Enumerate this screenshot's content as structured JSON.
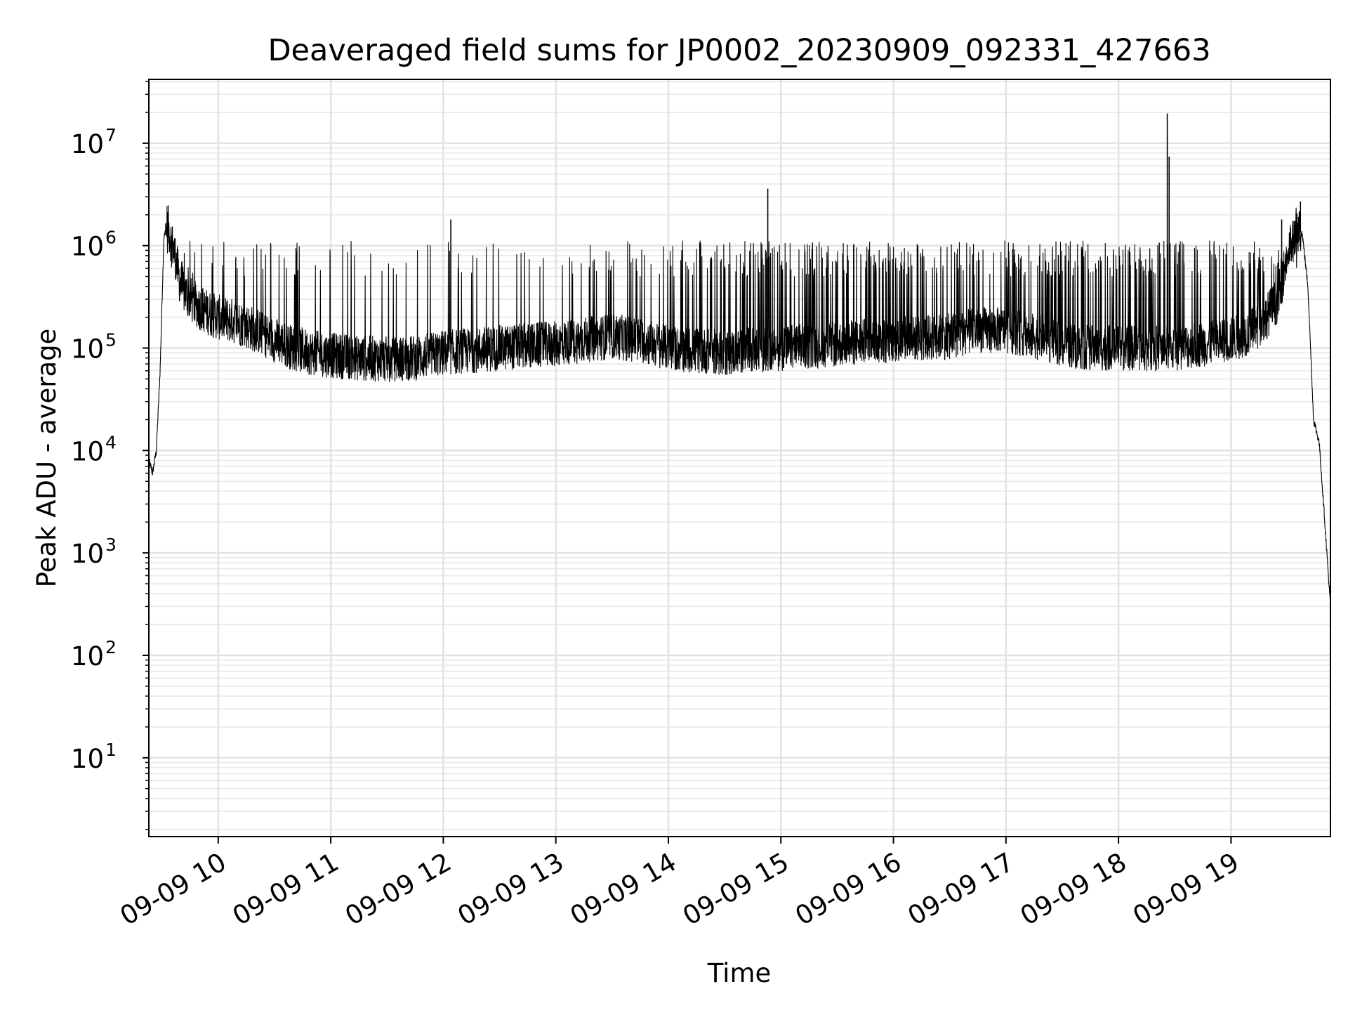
{
  "chart_data": {
    "type": "line",
    "title": "Deaveraged field sums for JP0002_20230909_092331_427663",
    "xlabel": "Time",
    "ylabel": "Peak ADU - average",
    "yscale": "log",
    "ylim": [
      1.7,
      42000000
    ],
    "xlim": [
      "2023-09-09 09:23",
      "2023-09-09 19:53"
    ],
    "grid": true,
    "x_tick_labels": [
      "09-09 10",
      "09-09 11",
      "09-09 12",
      "09-09 13",
      "09-09 14",
      "09-09 15",
      "09-09 16",
      "09-09 17",
      "09-09 18",
      "09-09 19"
    ],
    "x_tick_values": [
      "2023-09-09 10:00",
      "2023-09-09 11:00",
      "2023-09-09 12:00",
      "2023-09-09 13:00",
      "2023-09-09 14:00",
      "2023-09-09 15:00",
      "2023-09-09 16:00",
      "2023-09-09 17:00",
      "2023-09-09 18:00",
      "2023-09-09 19:00"
    ],
    "y_tick_labels": [
      {
        "base": "10",
        "exp": "1"
      },
      {
        "base": "10",
        "exp": "2"
      },
      {
        "base": "10",
        "exp": "3"
      },
      {
        "base": "10",
        "exp": "4"
      },
      {
        "base": "10",
        "exp": "5"
      },
      {
        "base": "10",
        "exp": "6"
      },
      {
        "base": "10",
        "exp": "7"
      }
    ],
    "y_tick_values": [
      10,
      100,
      1000,
      10000,
      100000,
      1000000,
      10000000
    ],
    "series": [
      {
        "color": "#000000",
        "x": [
          "2023-09-09 09:23",
          "2023-09-09 09:25",
          "2023-09-09 09:27",
          "2023-09-09 09:29",
          "2023-09-09 09:31",
          "2023-09-09 09:33",
          "2023-09-09 09:35",
          "2023-09-09 09:37",
          "2023-09-09 09:40",
          "2023-09-09 09:45",
          "2023-09-09 09:50",
          "2023-09-09 09:55",
          "2023-09-09 10:00",
          "2023-09-09 10:10",
          "2023-09-09 10:20",
          "2023-09-09 10:30",
          "2023-09-09 10:40",
          "2023-09-09 10:50",
          "2023-09-09 11:00",
          "2023-09-09 11:15",
          "2023-09-09 11:30",
          "2023-09-09 11:45",
          "2023-09-09 12:00",
          "2023-09-09 12:15",
          "2023-09-09 12:30",
          "2023-09-09 12:45",
          "2023-09-09 13:00",
          "2023-09-09 13:15",
          "2023-09-09 13:30",
          "2023-09-09 13:45",
          "2023-09-09 14:00",
          "2023-09-09 14:15",
          "2023-09-09 14:30",
          "2023-09-09 14:45",
          "2023-09-09 15:00",
          "2023-09-09 15:15",
          "2023-09-09 15:30",
          "2023-09-09 15:45",
          "2023-09-09 16:00",
          "2023-09-09 16:15",
          "2023-09-09 16:30",
          "2023-09-09 16:45",
          "2023-09-09 17:00",
          "2023-09-09 17:15",
          "2023-09-09 17:30",
          "2023-09-09 17:45",
          "2023-09-09 18:00",
          "2023-09-09 18:15",
          "2023-09-09 18:30",
          "2023-09-09 18:45",
          "2023-09-09 19:00",
          "2023-09-09 19:15",
          "2023-09-09 19:25",
          "2023-09-09 19:30",
          "2023-09-09 19:35",
          "2023-09-09 19:38",
          "2023-09-09 19:41",
          "2023-09-09 19:44",
          "2023-09-09 19:47",
          "2023-09-09 19:50",
          "2023-09-09 19:53"
        ],
        "y": [
          8000,
          6000,
          10000,
          60000,
          1200000,
          1600000,
          1100000,
          800000,
          400000,
          300000,
          250000,
          220000,
          200000,
          180000,
          150000,
          120000,
          100000,
          90000,
          85000,
          80000,
          78000,
          80000,
          90000,
          95000,
          100000,
          105000,
          110000,
          120000,
          130000,
          120000,
          100000,
          95000,
          90000,
          95000,
          100000,
          105000,
          110000,
          115000,
          120000,
          125000,
          130000,
          150000,
          150000,
          130000,
          110000,
          100000,
          100000,
          100000,
          100000,
          110000,
          120000,
          160000,
          300000,
          800000,
          1500000,
          1300000,
          400000,
          20000,
          12000,
          2000,
          300
        ]
      }
    ],
    "spikes": [
      {
        "x": "2023-09-09 09:32",
        "y": 1650000
      },
      {
        "x": "2023-09-09 12:04",
        "y": 1800000
      },
      {
        "x": "2023-09-09 14:53",
        "y": 3600000
      },
      {
        "x": "2023-09-09 18:26",
        "y": 19500000
      },
      {
        "x": "2023-09-09 18:27",
        "y": 7400000
      },
      {
        "x": "2023-09-09 19:27",
        "y": 1800000
      },
      {
        "x": "2023-09-09 19:37",
        "y": 2700000
      }
    ]
  }
}
